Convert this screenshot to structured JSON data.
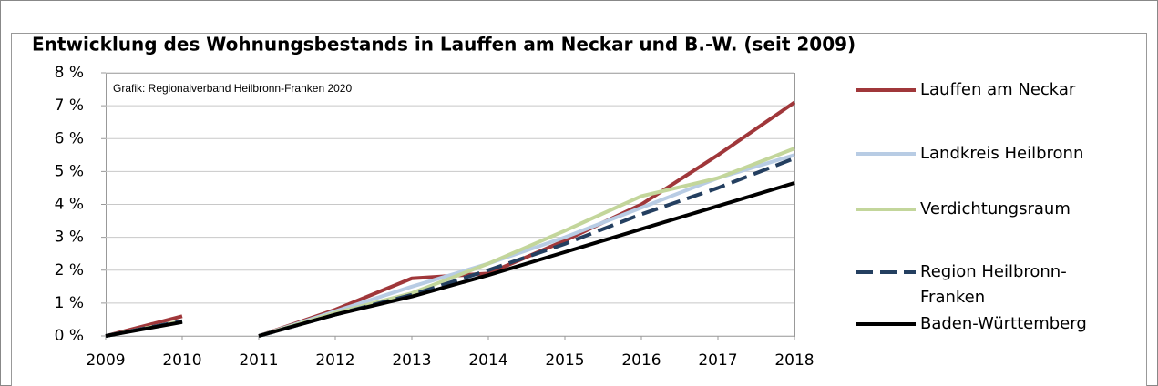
{
  "chart_data": {
    "type": "line",
    "title": "Entwicklung des Wohnungsbestands in Lauffen am Neckar und B.-W. (seit 2009)",
    "annotation": "Grafik: Regionalverband Heilbronn-Franken 2020",
    "x": [
      2009,
      2010,
      null,
      2011,
      2012,
      2013,
      2014,
      2015,
      2016,
      2017,
      2018
    ],
    "xlim": [
      2009,
      2018
    ],
    "xticks": [
      2009,
      2010,
      2011,
      2012,
      2013,
      2014,
      2015,
      2016,
      2017,
      2018
    ],
    "ylim": [
      0,
      8
    ],
    "yticks": [
      {
        "value": 0,
        "label": "0 %"
      },
      {
        "value": 1,
        "label": "1 %"
      },
      {
        "value": 2,
        "label": "2 %"
      },
      {
        "value": 3,
        "label": "3 %"
      },
      {
        "value": 4,
        "label": "4 %"
      },
      {
        "value": 5,
        "label": "5 %"
      },
      {
        "value": 6,
        "label": "6 %"
      },
      {
        "value": 7,
        "label": "7 %"
      },
      {
        "value": 8,
        "label": "8 %"
      }
    ],
    "grid": true,
    "legend": "right",
    "series": [
      {
        "name": "Lauffen am Neckar",
        "color": "#a0373a",
        "values": [
          0,
          0.6,
          null,
          0,
          0.8,
          1.75,
          1.9,
          2.9,
          4.0,
          5.5,
          7.1
        ]
      },
      {
        "name": "Landkreis Heilbronn",
        "color": "#b8cce4",
        "values": [
          0,
          0.45,
          null,
          0,
          0.75,
          1.5,
          2.2,
          3.0,
          3.9,
          4.8,
          5.5
        ]
      },
      {
        "name": "Verdichtungsraum",
        "color": "#c3d69b",
        "values": [
          0,
          0.45,
          null,
          0,
          0.7,
          1.3,
          2.2,
          3.2,
          4.25,
          4.8,
          5.7
        ]
      },
      {
        "name": "Region Heilbronn-Franken",
        "color": "#243f60",
        "dashed": true,
        "values": [
          0,
          0.45,
          null,
          0,
          0.65,
          1.25,
          2.0,
          2.8,
          3.7,
          4.5,
          5.4
        ]
      },
      {
        "name": "Baden-Württemberg",
        "color": "#000000",
        "values": [
          0,
          0.42,
          null,
          0,
          0.65,
          1.2,
          1.85,
          2.55,
          3.25,
          3.95,
          4.65
        ]
      }
    ]
  }
}
